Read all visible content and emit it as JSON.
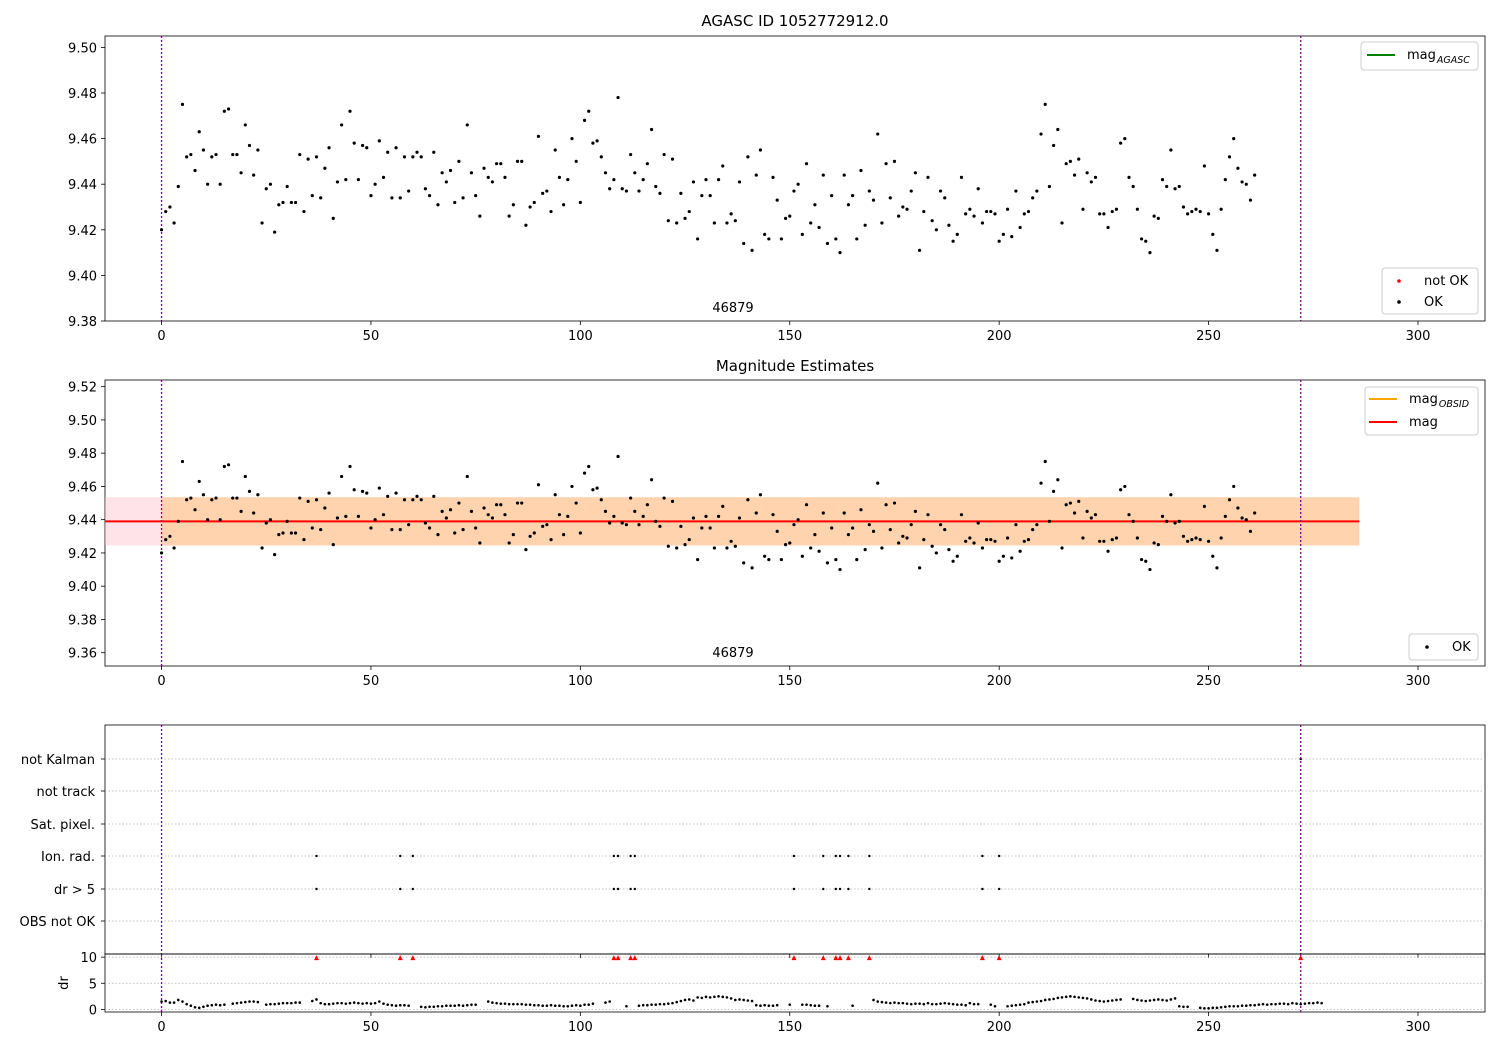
{
  "figure": {
    "title": "AGASC ID 1052772912.0",
    "xlim": [
      -13.5,
      316
    ],
    "x_ticks": [
      0,
      50,
      100,
      150,
      200,
      250,
      300
    ],
    "obs_boundaries": [
      0,
      272
    ],
    "obsid_label": "46879"
  },
  "colors": {
    "ok": "#000000",
    "not_ok": "#ff0000",
    "mag_agasc": "#008000",
    "mag_obsid": "#ffa500",
    "mag": "#ff0000",
    "band_mag": "#ffc0cb",
    "band_obsid": "#ffa500",
    "boundary": "#800080",
    "grid": "#b0b0b0"
  },
  "chart_data": [
    {
      "type": "scatter",
      "title": "",
      "ylim": [
        9.38,
        9.505
      ],
      "y_ticks": [
        "9.38",
        "9.40",
        "9.42",
        "9.44",
        "9.46",
        "9.48",
        "9.50"
      ],
      "legend_lines": [
        {
          "name": "mag",
          "sub": "AGASC",
          "color_key": "mag_agasc"
        }
      ],
      "legend_points": [
        {
          "name": "not OK",
          "color_key": "not_ok"
        },
        {
          "name": "OK",
          "color_key": "ok"
        }
      ],
      "legend_placement": [
        "upper right",
        "lower right"
      ],
      "series": [
        {
          "name": "OK"
        }
      ]
    },
    {
      "type": "scatter",
      "title": "Magnitude Estimates",
      "ylim": [
        9.352,
        9.524
      ],
      "y_ticks": [
        "9.36",
        "9.38",
        "9.40",
        "9.42",
        "9.44",
        "9.46",
        "9.48",
        "9.50",
        "9.52"
      ],
      "hline": {
        "value": 9.439,
        "x_range": [
          -13.5,
          286
        ]
      },
      "bands": [
        {
          "range": [
            9.4245,
            9.4535
          ],
          "x_range": [
            -13.5,
            286
          ],
          "color_key": "band_mag",
          "alpha": 0.45
        },
        {
          "range": [
            9.4245,
            9.4535
          ],
          "x_range": [
            0,
            286
          ],
          "color_key": "band_obsid",
          "alpha": 0.25
        }
      ],
      "legend_lines": [
        {
          "name": "mag",
          "sub": "OBSID",
          "color_key": "mag_obsid"
        },
        {
          "name": "mag",
          "sub": "",
          "color_key": "mag"
        }
      ],
      "legend_points": [
        {
          "name": "OK",
          "color_key": "ok"
        }
      ],
      "legend_placement": [
        "upper right",
        "lower right"
      ],
      "series": [
        {
          "name": "OK"
        }
      ]
    },
    {
      "type": "scatter",
      "title": "",
      "flag_categories": [
        "not Kalman",
        "not track",
        "Sat. pixel.",
        "Ion. rad.",
        "dr > 5",
        "OBS not OK"
      ],
      "flag_points": {
        "Ion. rad.": [
          37,
          57,
          60,
          108,
          109,
          112,
          113,
          151,
          158,
          161,
          162,
          164,
          169,
          196,
          200
        ],
        "dr > 5": [
          37,
          57,
          60,
          108,
          109,
          112,
          113,
          151,
          158,
          161,
          162,
          164,
          169,
          196,
          200
        ],
        "not Kalman": [
          272
        ]
      },
      "grid": true
    },
    {
      "type": "scatter",
      "title": "",
      "ylabel": "dr",
      "ylim": [
        -0.5,
        10.6
      ],
      "y_ticks": [
        "0",
        "5",
        "10"
      ],
      "clipped_points": {
        "value": 10,
        "x": [
          37,
          57,
          60,
          108,
          109,
          112,
          113,
          151,
          158,
          161,
          162,
          164,
          169,
          196,
          200,
          272
        ]
      },
      "gaps": [
        [
          16,
          16
        ],
        [
          24,
          24
        ],
        [
          34,
          35
        ],
        [
          60,
          61
        ],
        [
          76,
          77
        ],
        [
          104,
          105
        ],
        [
          108,
          110
        ],
        [
          112,
          113
        ],
        [
          148,
          149
        ],
        [
          151,
          152
        ],
        [
          158,
          158
        ],
        [
          160,
          164
        ],
        [
          166,
          169
        ],
        [
          196,
          197
        ],
        [
          200,
          201
        ],
        [
          230,
          231
        ],
        [
          246,
          247
        ]
      ],
      "grid": true
    }
  ],
  "mag_y": [
    9.42,
    9.428,
    9.43,
    9.423,
    9.439,
    9.475,
    9.452,
    9.453,
    9.446,
    9.463,
    9.455,
    9.44,
    9.452,
    9.453,
    9.44,
    9.472,
    9.473,
    9.453,
    9.453,
    9.445,
    9.466,
    9.457,
    9.444,
    9.455,
    9.423,
    9.438,
    9.44,
    9.419,
    9.431,
    9.432,
    9.439,
    9.432,
    9.432,
    9.453,
    9.428,
    9.451,
    9.435,
    9.452,
    9.434,
    9.447,
    9.456,
    9.425,
    9.441,
    9.466,
    9.442,
    9.472,
    9.458,
    9.442,
    9.457,
    9.456,
    9.435,
    9.44,
    9.459,
    9.443,
    9.454,
    9.434,
    9.456,
    9.434,
    9.452,
    9.437,
    9.452,
    9.454,
    9.452,
    9.438,
    9.435,
    9.454,
    9.431,
    9.445,
    9.441,
    9.446,
    9.432,
    9.45,
    9.434,
    9.466,
    9.445,
    9.435,
    9.426,
    9.447,
    9.443,
    9.441,
    9.449,
    9.449,
    9.443,
    9.426,
    9.431,
    9.45,
    9.45,
    9.422,
    9.43,
    9.432,
    9.461,
    9.436,
    9.437,
    9.428,
    9.455,
    9.443,
    9.431,
    9.442,
    9.46,
    9.45,
    9.432,
    9.468,
    9.472,
    9.458,
    9.459,
    9.452,
    9.445,
    9.438,
    9.442,
    9.478,
    9.438,
    9.437,
    9.453,
    9.445,
    9.437,
    9.442,
    9.449,
    9.464,
    9.439,
    9.436,
    9.453,
    9.424,
    9.451,
    9.423,
    9.436,
    9.425,
    9.428,
    9.441,
    9.416,
    9.435,
    9.442,
    9.435,
    9.423,
    9.442,
    9.448,
    9.423,
    9.427,
    9.424,
    9.441,
    9.414,
    9.452,
    9.411,
    9.444,
    9.455,
    9.418,
    9.416,
    9.443,
    9.433,
    9.416,
    9.425,
    9.426,
    9.437,
    9.44,
    9.418,
    9.449,
    9.423,
    9.431,
    9.421,
    9.444,
    9.414,
    9.435,
    9.416,
    9.41,
    9.444,
    9.431,
    9.435,
    9.416,
    9.446,
    9.422,
    9.437,
    9.433,
    9.462,
    9.423,
    9.449,
    9.434,
    9.45,
    9.426,
    9.43,
    9.429,
    9.437,
    9.445,
    9.411,
    9.428,
    9.443,
    9.424,
    9.42,
    9.437,
    9.434,
    9.422,
    9.415,
    9.418,
    9.443,
    9.427,
    9.429,
    9.426,
    9.438,
    9.423,
    9.428,
    9.428,
    9.427,
    9.415,
    9.418,
    9.429,
    9.417,
    9.437,
    9.421,
    9.427,
    9.428,
    9.434,
    9.437,
    9.462,
    9.475,
    9.439,
    9.457,
    9.464,
    9.423,
    9.449,
    9.45,
    9.444,
    9.451,
    9.429,
    9.445,
    9.441,
    9.443,
    9.427,
    9.427,
    9.421,
    9.428,
    9.429,
    9.458,
    9.46,
    9.443,
    9.439,
    9.429,
    9.416,
    9.415,
    9.41,
    9.426,
    9.425,
    9.442,
    9.439,
    9.455,
    9.438,
    9.439,
    9.43,
    9.427,
    9.428,
    9.429,
    9.428,
    9.448,
    9.427,
    9.418,
    9.411,
    9.429,
    9.442,
    9.452,
    9.46,
    9.447,
    9.441,
    9.44,
    9.433,
    9.444
  ],
  "dr_y": [
    1.5,
    1.6,
    1.3,
    1.3,
    1.8,
    1.5,
    1.0,
    0.7,
    0.4,
    0.3,
    0.5,
    0.7,
    0.8,
    0.9,
    0.8,
    0.9,
    1.0,
    1.1,
    1.2,
    1.3,
    1.4,
    1.5,
    1.5,
    1.4,
    1.6,
    0.9,
    1.0,
    1.0,
    1.1,
    1.2,
    1.2,
    1.2,
    1.3,
    1.3,
    1.4,
    1.5,
    1.6,
    1.9,
    1.2,
    1.0,
    1.0,
    1.1,
    1.2,
    1.2,
    1.1,
    1.2,
    1.3,
    1.2,
    1.1,
    1.2,
    1.1,
    1.2,
    1.5,
    1.1,
    0.9,
    0.8,
    0.7,
    0.8,
    0.8,
    0.7,
    0.6,
    0.5,
    0.5,
    0.4,
    0.5,
    0.5,
    0.6,
    0.6,
    0.7,
    0.7,
    0.7,
    0.8,
    0.7,
    0.8,
    0.9,
    0.9,
    1.0,
    1.1,
    1.5,
    1.3,
    1.2,
    1.1,
    1.1,
    1.0,
    1.0,
    1.0,
    1.0,
    0.9,
    0.9,
    0.8,
    0.8,
    0.7,
    0.7,
    0.8,
    0.7,
    0.7,
    0.6,
    0.6,
    0.7,
    0.8,
    0.7,
    0.9,
    0.9,
    1.1,
    1.3,
    1.2,
    1.3,
    1.5,
    0.6,
    0.5,
    0.4,
    0.6,
    0.6,
    0.7,
    0.7,
    0.8,
    0.8,
    0.9,
    0.9,
    1.0,
    1.0,
    1.1,
    1.2,
    1.4,
    1.6,
    1.8,
    1.9,
    1.7,
    2.3,
    2.2,
    2.4,
    2.3,
    2.4,
    2.5,
    2.4,
    2.3,
    2.1,
    1.8,
    1.9,
    1.8,
    1.7,
    1.6,
    0.8,
    0.7,
    0.8,
    0.7,
    0.7,
    0.8,
    0.7,
    0.8,
    0.9,
    1.0,
    0.9,
    0.9,
    0.9,
    0.8,
    0.7,
    0.7,
    0.8,
    0.6,
    0.7,
    0.7,
    0.6,
    0.6,
    0.7,
    0.7,
    0.6,
    0.6,
    0.7,
    0.7,
    1.8,
    1.5,
    1.4,
    1.3,
    1.2,
    1.3,
    1.2,
    1.2,
    1.1,
    1.0,
    1.1,
    1.1,
    1.0,
    1.2,
    1.0,
    1.0,
    1.1,
    1.2,
    1.1,
    1.0,
    0.9,
    0.9,
    0.8,
    1.2,
    1.0,
    1.0,
    1.0,
    0.9,
    0.9,
    0.6,
    0.4,
    0.5,
    0.6,
    0.7,
    0.8,
    0.9,
    1.0,
    1.3,
    1.4,
    1.5,
    1.6,
    1.8,
    1.9,
    2.0,
    2.2,
    2.3,
    2.4,
    2.5,
    2.4,
    2.3,
    2.2,
    2.1,
    1.9,
    1.7,
    1.6,
    1.5,
    1.6,
    1.7,
    1.8,
    1.9,
    2.0,
    1.9,
    2.0,
    1.8,
    1.7,
    1.6,
    1.7,
    1.8,
    1.9,
    1.8,
    1.7,
    1.9,
    2.1,
    0.6,
    0.5,
    0.5,
    0.4,
    0.4,
    0.3,
    0.2,
    0.2,
    0.3,
    0.3,
    0.4,
    0.5,
    0.6,
    0.6,
    0.6,
    0.7,
    0.7,
    0.8,
    0.8,
    0.9,
    1.0,
    0.9,
    1.0,
    1.0,
    1.1,
    1.1,
    1.0,
    1.2,
    1.1,
    1.0,
    1.1,
    1.2,
    1.2,
    1.3,
    1.2
  ]
}
